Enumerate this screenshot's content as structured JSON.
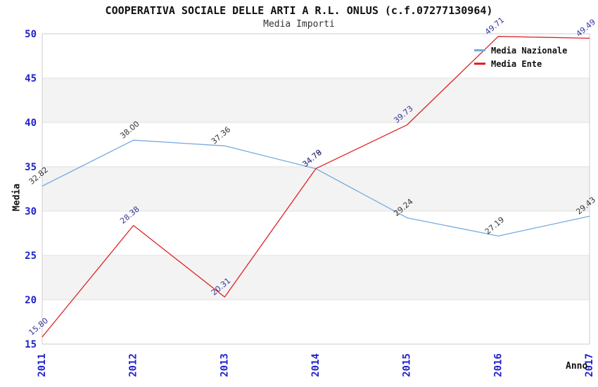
{
  "page": {
    "title": "COOPERATIVA SOCIALE DELLE ARTI A R.L. ONLUS (c.f.07277130964)",
    "subtitle": "Media Importi"
  },
  "chart_data": {
    "type": "line",
    "title": "COOPERATIVA SOCIALE DELLE ARTI A R.L. ONLUS (c.f.07277130964)",
    "subtitle": "Media Importi",
    "xlabel": "Anno",
    "ylabel": "Media",
    "categories": [
      "2011",
      "2012",
      "2013",
      "2014",
      "2015",
      "2016",
      "2017"
    ],
    "series": [
      {
        "name": "Media Nazionale",
        "color": "#74aadf",
        "label_color": "#333333",
        "values": [
          32.82,
          38.0,
          37.36,
          34.78,
          29.24,
          27.19,
          29.43
        ],
        "labels": [
          "32.82",
          "38.00",
          "37.36",
          "34.78",
          "29.24",
          "27.19",
          "29.43"
        ]
      },
      {
        "name": "Media Ente",
        "color": "#dd2222",
        "label_color": "#333399",
        "values": [
          15.8,
          28.38,
          20.31,
          34.79,
          39.73,
          49.71,
          49.49
        ],
        "labels": [
          "15.80",
          "28.38",
          "20.31",
          "34.79",
          "39.73",
          "49.71",
          "49.49"
        ]
      }
    ],
    "ylim": [
      15,
      50
    ],
    "yticks": [
      15,
      20,
      25,
      30,
      35,
      40,
      45,
      50
    ],
    "bands": [
      [
        20,
        25
      ],
      [
        30,
        35
      ],
      [
        40,
        45
      ]
    ],
    "grid": "horizontal-bands",
    "legend_position": "top-right",
    "colors": {
      "tick_label": "#2222cc",
      "band_fill": "#f3f3f3",
      "grid_line": "#e2e2e2",
      "frame": "#cccccc",
      "axis_title": "#111111"
    }
  }
}
